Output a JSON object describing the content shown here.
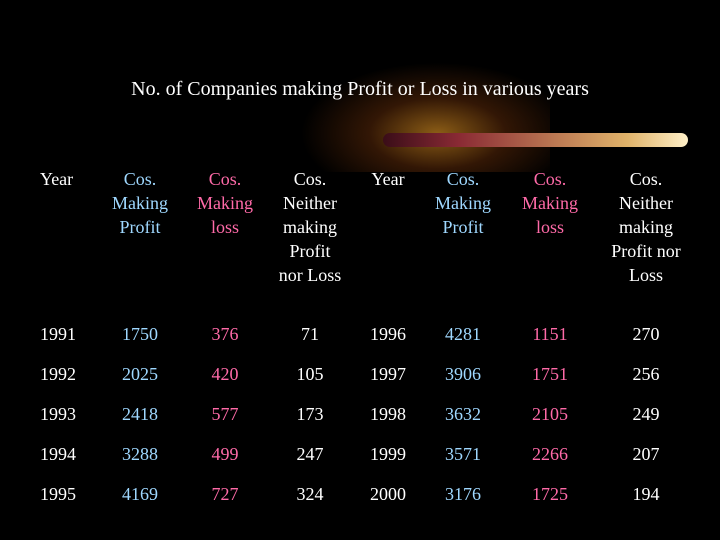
{
  "title": "No. of Companies making Profit or Loss in various years",
  "headers": [
    "Year",
    "Cos. Making Profit",
    "Cos. Making loss",
    "Cos. Neither making Profit nor Loss",
    "Year",
    "Cos. Making Profit",
    "Cos. Making loss",
    "Cos. Neither making Profit nor Loss"
  ],
  "header_lines": [
    [
      "Year"
    ],
    [
      "Cos.",
      "Making",
      "Profit"
    ],
    [
      "Cos.",
      "Making",
      "loss"
    ],
    [
      "Cos.",
      "Neither",
      "making",
      "Profit",
      "nor Loss"
    ],
    [
      "Year"
    ],
    [
      "Cos.",
      "Making",
      "Profit"
    ],
    [
      "Cos.",
      "Making",
      "loss"
    ],
    [
      "Cos.",
      "Neither",
      "making",
      "Profit nor",
      "Loss"
    ]
  ],
  "rows": [
    [
      "1991",
      "1750",
      "376",
      "71",
      "1996",
      "4281",
      "1151",
      "270"
    ],
    [
      "1992",
      "2025",
      "420",
      "105",
      "1997",
      "3906",
      "1751",
      "256"
    ],
    [
      "1993",
      "2418",
      "577",
      "173",
      "1998",
      "3632",
      "2105",
      "249"
    ],
    [
      "1994",
      "3288",
      "499",
      "247",
      "1999",
      "3571",
      "2266",
      "207"
    ],
    [
      "1995",
      "4169",
      "727",
      "324",
      "2000",
      "3176",
      "1725",
      "194"
    ]
  ],
  "colors": {
    "background": "#000000",
    "year": "#ffffff",
    "profit": "#9fd8ff",
    "loss": "#ff6aa8",
    "neither": "#ffffff"
  }
}
